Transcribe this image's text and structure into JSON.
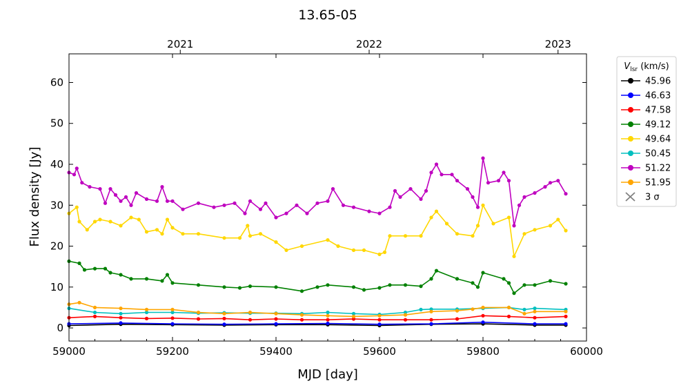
{
  "chart_data": {
    "type": "line",
    "title": "13.65-05",
    "xlabel": "MJD [day]",
    "ylabel": "Flux density [Jy]",
    "xlim": [
      59000,
      60000
    ],
    "ylim": [
      -3.2,
      67
    ],
    "x_ticks": [
      59000,
      59200,
      59400,
      59600,
      59800,
      60000
    ],
    "y_ticks": [
      0,
      10,
      20,
      30,
      40,
      50,
      60
    ],
    "top_axis": {
      "ticks": [
        {
          "label": "2021",
          "mjd": 59215
        },
        {
          "label": "2022",
          "mjd": 59580
        },
        {
          "label": "2023",
          "mjd": 59945
        }
      ]
    },
    "grid": false,
    "legend": {
      "title_main": "V",
      "title_sub": "lsr",
      "title_unit": " (km/s)",
      "placement": "outside-right-top",
      "extra_entry": {
        "label": "3 σ",
        "marker": "x",
        "color": "#808080"
      }
    },
    "series": [
      {
        "name": "45.96",
        "color": "#000000",
        "x": [
          59000,
          59100,
          59200,
          59300,
          59400,
          59500,
          59600,
          59700,
          59800,
          59900,
          59960
        ],
        "y": [
          0.6,
          0.9,
          0.8,
          0.7,
          0.8,
          0.8,
          0.6,
          0.9,
          1.0,
          0.7,
          0.7
        ]
      },
      {
        "name": "46.63",
        "color": "#0000ff",
        "x": [
          59000,
          59100,
          59200,
          59300,
          59400,
          59500,
          59600,
          59700,
          59800,
          59900,
          59960
        ],
        "y": [
          1.0,
          1.2,
          1.0,
          0.9,
          1.0,
          1.1,
          0.9,
          1.0,
          1.4,
          1.0,
          1.0
        ]
      },
      {
        "name": "47.58",
        "color": "#ff0000",
        "x": [
          59000,
          59050,
          59100,
          59150,
          59200,
          59250,
          59300,
          59350,
          59400,
          59450,
          59500,
          59550,
          59600,
          59650,
          59700,
          59750,
          59800,
          59850,
          59900,
          59960
        ],
        "y": [
          2.5,
          2.8,
          2.5,
          2.3,
          2.4,
          2.2,
          2.3,
          2.0,
          2.2,
          2.0,
          2.0,
          2.2,
          2.0,
          2.0,
          2.0,
          2.2,
          3.0,
          2.8,
          2.5,
          2.8
        ]
      },
      {
        "name": "49.12",
        "color": "#008000",
        "x": [
          59000,
          59020,
          59030,
          59050,
          59070,
          59080,
          59100,
          59120,
          59150,
          59180,
          59190,
          59200,
          59250,
          59300,
          59330,
          59350,
          59400,
          59450,
          59480,
          59500,
          59550,
          59570,
          59600,
          59620,
          59650,
          59680,
          59700,
          59710,
          59750,
          59780,
          59790,
          59800,
          59840,
          59850,
          59860,
          59880,
          59900,
          59930,
          59960
        ],
        "y": [
          16.3,
          15.8,
          14.2,
          14.5,
          14.5,
          13.5,
          13.0,
          12.0,
          12.0,
          11.5,
          13.0,
          11.0,
          10.5,
          10.0,
          9.8,
          10.2,
          10.0,
          9.0,
          10.0,
          10.5,
          10.0,
          9.3,
          9.8,
          10.5,
          10.5,
          10.2,
          12.0,
          14.0,
          12.0,
          11.0,
          10.0,
          13.5,
          12.0,
          11.0,
          8.5,
          10.5,
          10.5,
          11.5,
          10.8
        ]
      },
      {
        "name": "49.64",
        "color": "#ffd700",
        "x": [
          59000,
          59015,
          59020,
          59035,
          59050,
          59060,
          59080,
          59100,
          59120,
          59135,
          59150,
          59170,
          59180,
          59190,
          59200,
          59220,
          59250,
          59300,
          59330,
          59345,
          59350,
          59370,
          59400,
          59420,
          59450,
          59500,
          59520,
          59550,
          59570,
          59600,
          59610,
          59620,
          59650,
          59680,
          59700,
          59710,
          59730,
          59750,
          59780,
          59790,
          59800,
          59820,
          59850,
          59860,
          59880,
          59900,
          59930,
          59945,
          59960
        ],
        "y": [
          28.0,
          29.5,
          26.0,
          24.0,
          26.0,
          26.5,
          26.0,
          25.0,
          27.0,
          26.5,
          23.5,
          24.0,
          23.0,
          26.5,
          24.5,
          23.0,
          23.0,
          22.0,
          22.0,
          25.0,
          22.5,
          23.0,
          21.0,
          19.0,
          20.0,
          21.5,
          20.0,
          19.0,
          19.0,
          18.0,
          18.5,
          22.5,
          22.5,
          22.5,
          27.0,
          28.5,
          25.5,
          23.0,
          22.5,
          25.0,
          30.0,
          25.5,
          27.0,
          17.5,
          23.0,
          24.0,
          25.0,
          26.5,
          23.8
        ]
      },
      {
        "name": "50.45",
        "color": "#00bfbf",
        "x": [
          59000,
          59050,
          59100,
          59150,
          59200,
          59250,
          59300,
          59350,
          59400,
          59450,
          59500,
          59550,
          59600,
          59650,
          59680,
          59700,
          59750,
          59800,
          59850,
          59880,
          59900,
          59960
        ],
        "y": [
          4.8,
          3.8,
          3.5,
          3.8,
          3.8,
          3.6,
          3.7,
          3.6,
          3.6,
          3.5,
          3.8,
          3.5,
          3.3,
          3.8,
          4.5,
          4.6,
          4.6,
          4.8,
          5.0,
          4.5,
          4.8,
          4.5
        ]
      },
      {
        "name": "51.22",
        "color": "#bf00bf",
        "x": [
          59000,
          59010,
          59015,
          59025,
          59040,
          59060,
          59070,
          59080,
          59090,
          59100,
          59110,
          59120,
          59130,
          59150,
          59170,
          59180,
          59190,
          59200,
          59220,
          59250,
          59280,
          59300,
          59320,
          59340,
          59350,
          59370,
          59380,
          59400,
          59420,
          59440,
          59460,
          59480,
          59500,
          59510,
          59530,
          59550,
          59580,
          59600,
          59620,
          59630,
          59640,
          59660,
          59680,
          59690,
          59700,
          59710,
          59720,
          59740,
          59750,
          59770,
          59780,
          59790,
          59800,
          59810,
          59830,
          59840,
          59850,
          59860,
          59870,
          59880,
          59900,
          59920,
          59930,
          59945,
          59960
        ],
        "y": [
          38.0,
          37.5,
          39.0,
          35.5,
          34.5,
          34.0,
          30.5,
          34.0,
          32.5,
          31.0,
          32.0,
          30.0,
          33.0,
          31.5,
          31.0,
          34.5,
          31.0,
          31.0,
          29.0,
          30.5,
          29.5,
          30.0,
          30.5,
          28.0,
          31.0,
          29.0,
          30.5,
          27.0,
          28.0,
          30.0,
          28.0,
          30.5,
          31.0,
          34.0,
          30.0,
          29.5,
          28.5,
          28.0,
          29.5,
          33.5,
          32.0,
          34.0,
          31.5,
          33.5,
          38.0,
          40.0,
          37.5,
          37.5,
          36.0,
          34.0,
          32.0,
          29.5,
          41.5,
          35.5,
          36.0,
          38.0,
          36.0,
          25.0,
          30.0,
          32.0,
          33.0,
          34.5,
          35.5,
          36.0,
          32.8
        ]
      },
      {
        "name": "51.95",
        "color": "#ffa500",
        "x": [
          59000,
          59020,
          59050,
          59100,
          59150,
          59200,
          59250,
          59300,
          59350,
          59400,
          59450,
          59500,
          59550,
          59600,
          59650,
          59700,
          59750,
          59780,
          59800,
          59850,
          59880,
          59900,
          59960
        ],
        "y": [
          5.8,
          6.2,
          5.0,
          4.8,
          4.5,
          4.5,
          3.8,
          3.5,
          3.8,
          3.5,
          3.2,
          3.0,
          2.8,
          3.0,
          3.2,
          4.0,
          4.2,
          4.6,
          5.0,
          5.0,
          3.5,
          4.0,
          4.0
        ]
      }
    ]
  }
}
